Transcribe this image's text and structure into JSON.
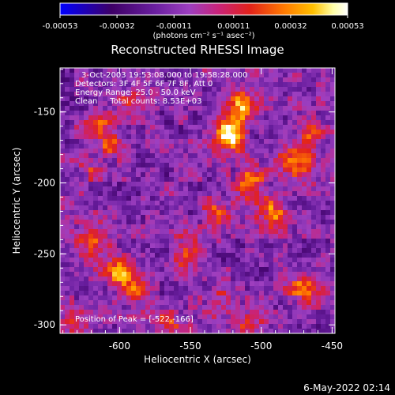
{
  "title": "Reconstructed RHESSI Image",
  "timestamp": "6-May-2022 02:14",
  "colorbar": {
    "tick_labels": [
      "-0.00053",
      "-0.00032",
      "-0.00011",
      "0.00011",
      "0.00032",
      "0.00053"
    ],
    "ticks": [
      -0.00053,
      -0.00032,
      -0.00011,
      0.00011,
      0.00032,
      0.00053
    ],
    "range": [
      -0.00053,
      0.00053
    ],
    "unit_label": "(photons cm⁻² s⁻¹ asec⁻²)"
  },
  "annotations": {
    "time_range": "3-Oct-2003 19:53:08.000 to 19:58:28.000",
    "detectors": "Detectors: 3F 4F 5F 6F 7F 8F, Att 0",
    "energy": "Energy Range: 25.0 - 50.0 keV",
    "clean": "Clean     Total counts: 8.53E+03",
    "peak": "Position of Peak = [-522,-166]"
  },
  "chart_data": {
    "type": "heatmap",
    "title": "Reconstructed RHESSI Image",
    "xlabel": "Heliocentric X (arcsec)",
    "ylabel": "Heliocentric Y (arcsec)",
    "xlim": [
      -642,
      -448
    ],
    "ylim": [
      -306,
      -119
    ],
    "x_ticks": [
      -600,
      -550,
      -500,
      -450
    ],
    "x_tick_labels": [
      "-600",
      "-550",
      "-500",
      "-450"
    ],
    "y_ticks": [
      -300,
      -250,
      -200,
      -150
    ],
    "y_tick_labels": [
      "-300",
      "-250",
      "-200",
      "-150"
    ],
    "peak_position": [
      -522,
      -166
    ],
    "colormap": [
      "#0000ff",
      "#3e0066",
      "#6a1fa0",
      "#9d3fc0",
      "#c8237a",
      "#e2221a",
      "#ff7a00",
      "#ffc000",
      "#ffffa8",
      "#ffffff"
    ],
    "z_range": [
      -0.00053,
      0.00053
    ],
    "bright_sources": [
      {
        "x": -522,
        "y": -166,
        "value": 0.00053
      },
      {
        "x": -512,
        "y": -146,
        "value": 0.0004
      },
      {
        "x": -508,
        "y": -200,
        "value": 0.00035
      },
      {
        "x": -492,
        "y": -222,
        "value": 0.00031
      },
      {
        "x": -476,
        "y": -185,
        "value": 0.00038
      },
      {
        "x": -464,
        "y": -165,
        "value": 0.00028
      },
      {
        "x": -470,
        "y": -275,
        "value": 0.00032
      },
      {
        "x": -532,
        "y": -222,
        "value": 0.00024
      },
      {
        "x": -548,
        "y": -245,
        "value": 0.00022
      },
      {
        "x": -556,
        "y": -258,
        "value": 0.00018
      },
      {
        "x": -615,
        "y": -160,
        "value": 0.00028
      },
      {
        "x": -605,
        "y": -172,
        "value": 0.00022
      },
      {
        "x": -622,
        "y": -240,
        "value": 0.0003
      },
      {
        "x": -600,
        "y": -262,
        "value": 0.00036
      },
      {
        "x": -590,
        "y": -275,
        "value": 0.00022
      },
      {
        "x": -630,
        "y": -298,
        "value": 0.00018
      },
      {
        "x": -592,
        "y": -140,
        "value": 0.00014
      },
      {
        "x": -620,
        "y": -190,
        "value": 0.00016
      },
      {
        "x": -528,
        "y": -282,
        "value": 0.00016
      },
      {
        "x": -510,
        "y": -300,
        "value": 0.0002
      },
      {
        "x": -565,
        "y": -300,
        "value": 0.00024
      }
    ]
  }
}
